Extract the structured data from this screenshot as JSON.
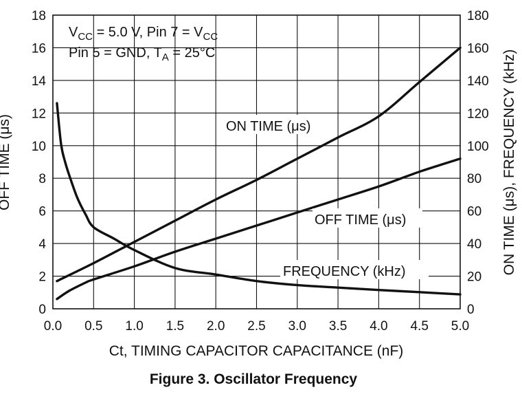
{
  "chart_data": {
    "type": "line",
    "caption": "Figure 3. Oscillator Frequency",
    "xlabel": "Ct, TIMING CAPACITOR CAPACITANCE (nF)",
    "ylabel_left": "OFF TIME (μs)",
    "ylabel_right": "ON TIME (μs), FREQUENCY (kHz)",
    "xlim": [
      0,
      5
    ],
    "ylim_left": [
      0,
      18
    ],
    "ylim_right": [
      0,
      180
    ],
    "x_ticks": [
      "0.0",
      "0.5",
      "1.0",
      "1.5",
      "2.0",
      "2.5",
      "3.0",
      "3.5",
      "4.0",
      "4.5",
      "5.0"
    ],
    "y_ticks_left": [
      "0",
      "2",
      "4",
      "6",
      "8",
      "10",
      "12",
      "14",
      "16",
      "18"
    ],
    "y_ticks_right": [
      "0",
      "20",
      "40",
      "60",
      "80",
      "100",
      "120",
      "140",
      "160",
      "180"
    ],
    "grid": true,
    "conditions": {
      "line1": "VCC = 5.0 V, Pin 7 = VCC",
      "line2": "Pin 5 = GND, TA = 25°C"
    },
    "series": [
      {
        "name": "ON TIME (μs)",
        "axis": "right",
        "x": [
          0.05,
          0.5,
          1.0,
          1.5,
          2.0,
          2.5,
          3.0,
          3.5,
          4.0,
          4.5,
          5.0
        ],
        "values": [
          17,
          28,
          41,
          54,
          67,
          79,
          92,
          105,
          118,
          139,
          160
        ]
      },
      {
        "name": "OFF TIME (μs)",
        "axis": "left",
        "x": [
          0.05,
          0.2,
          0.4,
          0.5,
          1.0,
          1.5,
          2.0,
          2.5,
          3.0,
          3.5,
          4.0,
          4.5,
          5.0
        ],
        "values": [
          0.6,
          1.1,
          1.6,
          1.8,
          2.6,
          3.5,
          4.3,
          5.1,
          5.9,
          6.7,
          7.5,
          8.4,
          9.2
        ]
      },
      {
        "name": "FREQUENCY (kHz)",
        "axis": "right",
        "x": [
          0.05,
          0.1,
          0.15,
          0.2,
          0.3,
          0.4,
          0.5,
          0.75,
          1.0,
          1.5,
          2.0,
          2.5,
          3.0,
          3.5,
          4.0,
          4.5,
          5.0
        ],
        "values": [
          126,
          101,
          90,
          82,
          68,
          58,
          50,
          43,
          36,
          25,
          21,
          17,
          14.5,
          13,
          11.5,
          10.2,
          8.8
        ]
      }
    ]
  }
}
